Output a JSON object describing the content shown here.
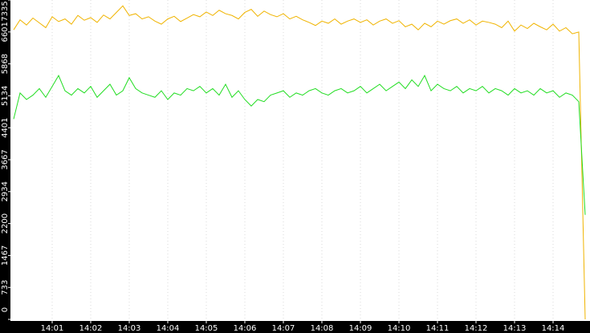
{
  "chart_data": {
    "type": "line",
    "categories": [
      null,
      null,
      null,
      null,
      null,
      null,
      "14:01",
      null,
      null,
      null,
      null,
      null,
      "14:02",
      null,
      null,
      null,
      null,
      null,
      "14:03",
      null,
      null,
      null,
      null,
      null,
      "14:04",
      null,
      null,
      null,
      null,
      null,
      "14:05",
      null,
      null,
      null,
      null,
      null,
      "14:06",
      null,
      null,
      null,
      null,
      null,
      "14:07",
      null,
      null,
      null,
      null,
      null,
      "14:08",
      null,
      null,
      null,
      null,
      null,
      "14:09",
      null,
      null,
      null,
      null,
      null,
      "14:10",
      null,
      null,
      null,
      null,
      null,
      "14:11",
      null,
      null,
      null,
      null,
      null,
      "14:12",
      null,
      null,
      null,
      null,
      null,
      "14:13",
      null,
      null,
      null,
      null,
      null,
      "14:14",
      null,
      null,
      null,
      null,
      null
    ],
    "series": [
      {
        "color": "#f0b400",
        "values": [
          6650,
          6880,
          6760,
          6920,
          6810,
          6700,
          6950,
          6840,
          6900,
          6780,
          6980,
          6870,
          6930,
          6820,
          6990,
          6900,
          7050,
          7200,
          6980,
          7020,
          6900,
          6950,
          6850,
          6780,
          6900,
          6960,
          6840,
          6920,
          7000,
          6950,
          7060,
          6980,
          7100,
          7020,
          6980,
          6900,
          7050,
          7120,
          6960,
          7080,
          7000,
          6950,
          7020,
          6900,
          6960,
          6880,
          6820,
          6750,
          6850,
          6800,
          6900,
          6780,
          6850,
          6900,
          6820,
          6880,
          6760,
          6850,
          6900,
          6800,
          6860,
          6720,
          6780,
          6650,
          6800,
          6720,
          6850,
          6780,
          6860,
          6900,
          6800,
          6880,
          6760,
          6850,
          6820,
          6780,
          6700,
          6850,
          6620,
          6760,
          6680,
          6800,
          6720,
          6650,
          6780,
          6620,
          6700,
          6560,
          6600,
          0
        ]
      },
      {
        "color": "#22dd22",
        "values": [
          4600,
          5200,
          5050,
          5150,
          5300,
          5100,
          5350,
          5600,
          5250,
          5150,
          5300,
          5200,
          5350,
          5100,
          5250,
          5400,
          5150,
          5250,
          5550,
          5300,
          5200,
          5150,
          5100,
          5250,
          5050,
          5200,
          5150,
          5300,
          5250,
          5350,
          5200,
          5300,
          5150,
          5400,
          5100,
          5250,
          5050,
          4900,
          5050,
          5000,
          5150,
          5200,
          5250,
          5100,
          5200,
          5150,
          5250,
          5300,
          5200,
          5150,
          5250,
          5300,
          5200,
          5250,
          5350,
          5200,
          5300,
          5400,
          5250,
          5350,
          5450,
          5300,
          5500,
          5350,
          5600,
          5250,
          5400,
          5300,
          5250,
          5350,
          5200,
          5300,
          5250,
          5350,
          5200,
          5300,
          5250,
          5150,
          5300,
          5200,
          5250,
          5150,
          5300,
          5200,
          5250,
          5100,
          5200,
          5150,
          5000,
          2400
        ]
      }
    ],
    "ylim": [
      0,
      7335
    ],
    "yticks": [
      0,
      733,
      1467,
      2200,
      2934,
      3667,
      4401,
      5134,
      5868,
      6601,
      7335
    ],
    "grid": true
  }
}
